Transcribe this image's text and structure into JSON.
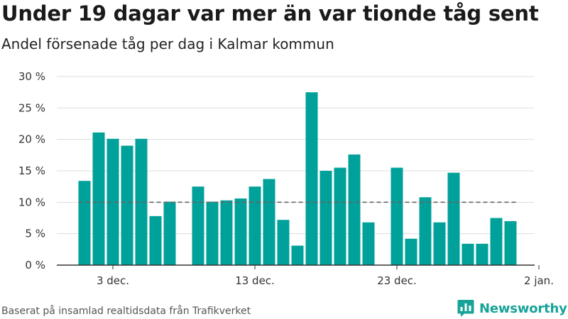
{
  "title": "Under 19 dagar var mer än var tionde tåg sent",
  "subtitle": "Andel försenade tåg per dag i Kalmar kommun",
  "source": "Baserat på insamlad realtidsdata från Trafikverket",
  "brand": {
    "name": "Newsworthy",
    "color": "#17a398"
  },
  "colors": {
    "bar": "#00a19a",
    "reference_line": "#666666",
    "grid": "#dddddd",
    "axis": "#333333"
  },
  "chart_data": {
    "type": "bar",
    "x": [
      "2023-12-01",
      "2023-12-02",
      "2023-12-03",
      "2023-12-04",
      "2023-12-05",
      "2023-12-06",
      "2023-12-07",
      "2023-12-08",
      "2023-12-09",
      "2023-12-10",
      "2023-12-11",
      "2023-12-12",
      "2023-12-13",
      "2023-12-14",
      "2023-12-15",
      "2023-12-16",
      "2023-12-17",
      "2023-12-18",
      "2023-12-19",
      "2023-12-20",
      "2023-12-21",
      "2023-12-22",
      "2023-12-23",
      "2023-12-24",
      "2023-12-25",
      "2023-12-26",
      "2023-12-27",
      "2023-12-28",
      "2023-12-29",
      "2023-12-30",
      "2023-12-31"
    ],
    "values": [
      13.4,
      21.1,
      20.1,
      19.0,
      20.1,
      7.8,
      10.1,
      null,
      12.5,
      10.1,
      10.3,
      10.6,
      12.5,
      13.7,
      7.2,
      3.1,
      27.5,
      15.0,
      15.5,
      17.6,
      6.8,
      null,
      15.5,
      4.2,
      10.8,
      6.8,
      14.7,
      3.4,
      3.4,
      7.5,
      7.0
    ],
    "unit": "%",
    "ylim": [
      0,
      30
    ],
    "yticks": [
      0,
      5,
      10,
      15,
      20,
      25,
      30
    ],
    "ytick_labels": [
      "0 %",
      "5 %",
      "10 %",
      "15 %",
      "20 %",
      "25 %",
      "30 %"
    ],
    "xticks": [
      "2023-12-03",
      "2023-12-13",
      "2023-12-23",
      "2024-01-02"
    ],
    "xtick_labels": [
      "3 dec.",
      "13 dec.",
      "23 dec.",
      "2 jan."
    ],
    "reference_line": {
      "value": 10,
      "style": "dashed"
    },
    "grid": true,
    "legend": "none"
  }
}
